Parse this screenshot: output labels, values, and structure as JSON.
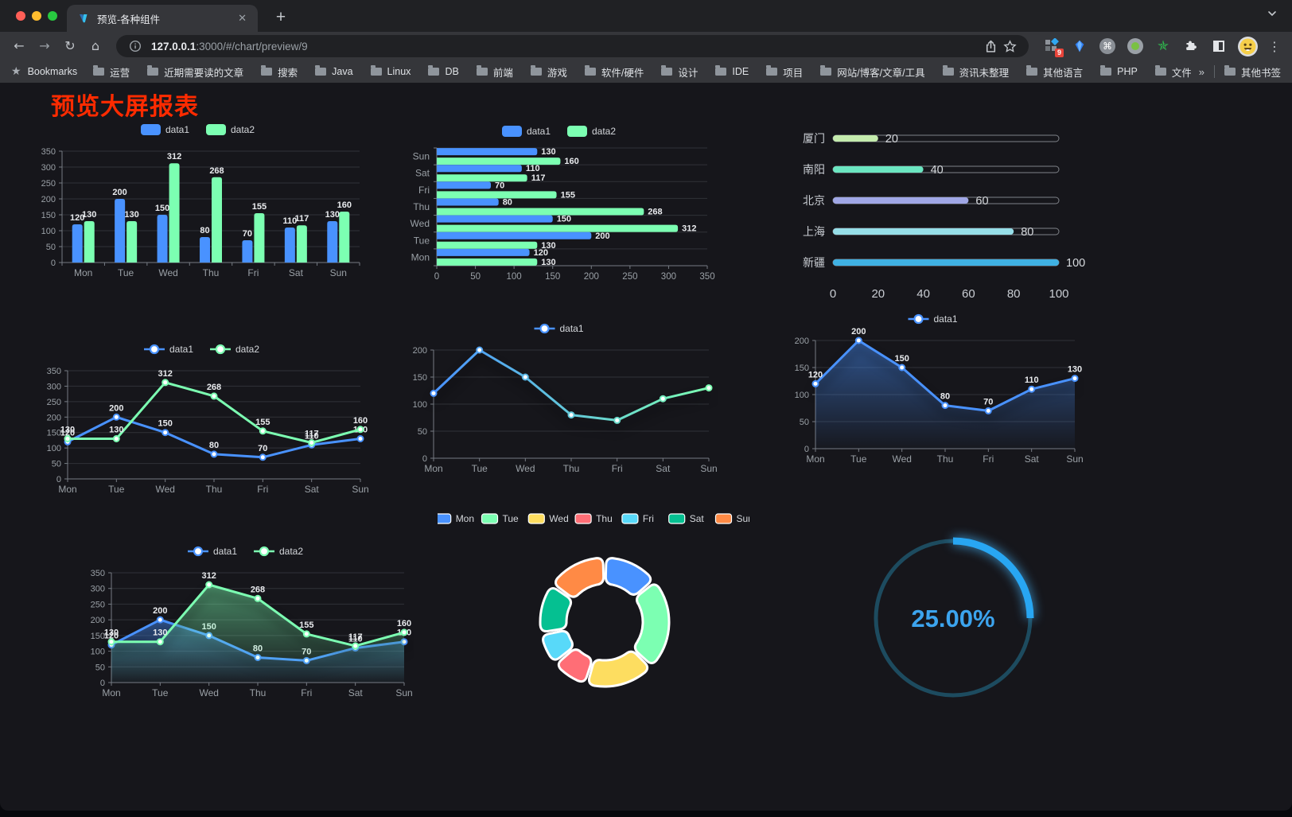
{
  "browser": {
    "tab_title": "预览-各种组件",
    "url": {
      "host": "127.0.0.1",
      "rest": ":3000/#/chart/preview/9"
    },
    "bookmarks_bar": {
      "bookmarks_label": "Bookmarks",
      "folders": [
        "运营",
        "近期需要读的文章",
        "搜索",
        "Java",
        "Linux",
        "DB",
        "前端",
        "游戏",
        "软件/硬件",
        "设计",
        "IDE",
        "项目",
        "网站/博客/文章/工具",
        "资讯未整理",
        "其他语言",
        "PHP",
        "文件服务器"
      ],
      "overflow_chevron": "»",
      "other_bookmarks_label": "其他书签"
    },
    "extensions": {
      "badge_count": "9"
    }
  },
  "page": {
    "title": "预览大屏报表",
    "title_color": "#fe2b00",
    "background": "#16161b"
  },
  "chart_data": [
    {
      "id": "grouped-bar-vertical",
      "type": "bar",
      "categories": [
        "Mon",
        "Tue",
        "Wed",
        "Thu",
        "Fri",
        "Sat",
        "Sun"
      ],
      "series": [
        {
          "name": "data1",
          "color": "#4992ff",
          "values": [
            120,
            200,
            150,
            80,
            70,
            110,
            130
          ]
        },
        {
          "name": "data2",
          "color": "#7cffb2",
          "values": [
            130,
            130,
            312,
            268,
            155,
            117,
            160
          ]
        }
      ],
      "ylim": [
        0,
        350
      ],
      "ytick": 50,
      "legend_position": "top",
      "value_labels": true
    },
    {
      "id": "grouped-bar-horizontal",
      "type": "bar",
      "orientation": "horizontal",
      "categories": [
        "Mon",
        "Tue",
        "Wed",
        "Thu",
        "Fri",
        "Sat",
        "Sun"
      ],
      "series": [
        {
          "name": "data1",
          "color": "#4992ff",
          "values": [
            120,
            200,
            150,
            80,
            70,
            110,
            130
          ]
        },
        {
          "name": "data2",
          "color": "#7cffb2",
          "values": [
            130,
            130,
            312,
            268,
            155,
            117,
            160
          ]
        }
      ],
      "xlim": [
        0,
        350
      ],
      "xtick": 50,
      "legend_position": "top",
      "value_labels": true
    },
    {
      "id": "progress-bars",
      "type": "bar",
      "subtype": "progress",
      "items": [
        {
          "label": "厦门",
          "value": 20,
          "color": "#c4ebad"
        },
        {
          "label": "南阳",
          "value": 40,
          "color": "#6be6c1"
        },
        {
          "label": "北京",
          "value": 60,
          "color": "#a0a7e6"
        },
        {
          "label": "上海",
          "value": 80,
          "color": "#96dee8"
        },
        {
          "label": "新疆",
          "value": 100,
          "color": "#3fb1e3"
        }
      ],
      "xlim": [
        0,
        100
      ],
      "ticks": [
        0,
        20,
        40,
        60,
        80,
        100
      ]
    },
    {
      "id": "line-two-series",
      "type": "line",
      "categories": [
        "Mon",
        "Tue",
        "Wed",
        "Thu",
        "Fri",
        "Sat",
        "Sun"
      ],
      "series": [
        {
          "name": "data1",
          "color": "#4992ff",
          "values": [
            120,
            200,
            150,
            80,
            70,
            110,
            130
          ]
        },
        {
          "name": "data2",
          "color": "#7cffb2",
          "values": [
            130,
            130,
            312,
            268,
            155,
            117,
            160
          ]
        }
      ],
      "ylim": [
        0,
        350
      ],
      "ytick": 50,
      "legend_position": "top",
      "value_labels": true
    },
    {
      "id": "line-gradient",
      "type": "line",
      "categories": [
        "Mon",
        "Tue",
        "Wed",
        "Thu",
        "Fri",
        "Sat",
        "Sun"
      ],
      "series": [
        {
          "name": "data1",
          "gradient": [
            "#4992ff",
            "#7cffb2"
          ],
          "values": [
            120,
            200,
            150,
            80,
            70,
            110,
            130
          ]
        }
      ],
      "ylim": [
        0,
        200
      ],
      "ytick": 50,
      "legend_position": "top",
      "value_labels": false,
      "shadow": true
    },
    {
      "id": "area-single",
      "type": "area",
      "categories": [
        "Mon",
        "Tue",
        "Wed",
        "Thu",
        "Fri",
        "Sat",
        "Sun"
      ],
      "series": [
        {
          "name": "data1",
          "color": "#4992ff",
          "values": [
            120,
            200,
            150,
            80,
            70,
            110,
            130
          ]
        }
      ],
      "ylim": [
        0,
        200
      ],
      "ytick": 50,
      "legend_position": "top",
      "value_labels": true,
      "shadow": true
    },
    {
      "id": "area-two-series",
      "type": "area",
      "categories": [
        "Mon",
        "Tue",
        "Wed",
        "Thu",
        "Fri",
        "Sat",
        "Sun"
      ],
      "series": [
        {
          "name": "data1",
          "color": "#4992ff",
          "values": [
            120,
            200,
            150,
            80,
            70,
            110,
            130
          ]
        },
        {
          "name": "data2",
          "color": "#7cffb2",
          "values": [
            130,
            130,
            312,
            268,
            155,
            117,
            160
          ]
        }
      ],
      "ylim": [
        0,
        350
      ],
      "ytick": 50,
      "legend_position": "top",
      "value_labels": true,
      "shadow": true
    },
    {
      "id": "donut",
      "type": "pie",
      "categories": [
        "Mon",
        "Tue",
        "Wed",
        "Thu",
        "Fri",
        "Sat",
        "Sun"
      ],
      "values": [
        120,
        200,
        150,
        80,
        70,
        110,
        130
      ],
      "colors": [
        "#4992ff",
        "#7cffb2",
        "#fddd60",
        "#ff6e76",
        "#58d9f9",
        "#05c091",
        "#ff8a45"
      ],
      "border_color": "#ffffff",
      "legend_position": "top"
    },
    {
      "id": "gauge",
      "type": "gauge",
      "value": 25,
      "display": "25.00%",
      "min": 0,
      "max": 100,
      "color": "#28a6f2",
      "track_color": "#1d4b5f",
      "text_color": "#3ca4ee"
    }
  ]
}
